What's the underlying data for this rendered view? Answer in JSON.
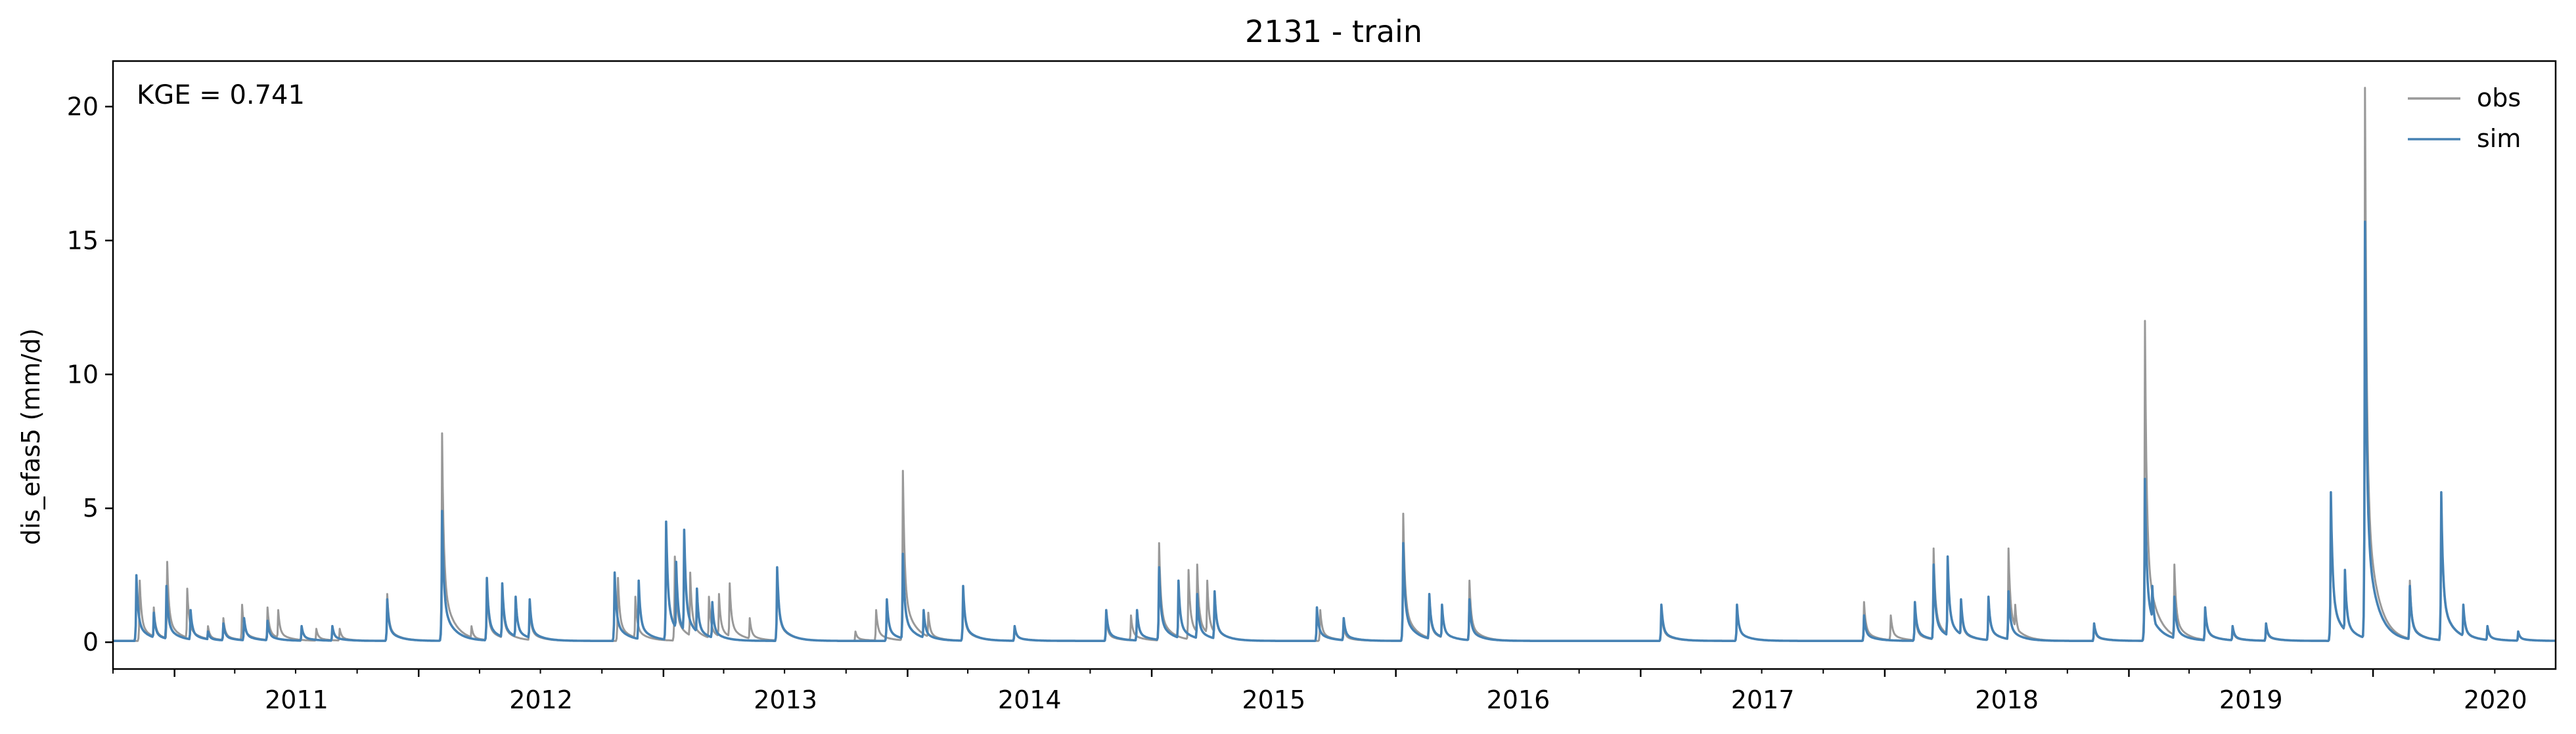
{
  "chart_data": {
    "type": "line",
    "title": "2131 - train",
    "xlabel": "",
    "ylabel": "dis_efas5 (mm/d)",
    "annotation": "KGE = 0.741",
    "x_range": [
      "2010-10-01",
      "2020-09-30"
    ],
    "ylim": [
      -1,
      21.7
    ],
    "yticks": [
      0,
      5,
      10,
      15,
      20
    ],
    "xtick_labels": [
      "2011",
      "2012",
      "2013",
      "2014",
      "2015",
      "2016",
      "2017",
      "2018",
      "2019",
      "2020"
    ],
    "grid": false,
    "legend_position": "top-right",
    "base_level": 0.05,
    "series": [
      {
        "name": "obs",
        "color": "#999999",
        "peaks": [
          [
            "2010-11-10",
            2.3
          ],
          [
            "2010-12-01",
            1.3
          ],
          [
            "2010-12-21",
            3.0
          ],
          [
            "2011-01-20",
            2.0
          ],
          [
            "2011-02-20",
            0.6
          ],
          [
            "2011-03-15",
            0.9
          ],
          [
            "2011-04-12",
            1.4
          ],
          [
            "2011-05-20",
            1.3
          ],
          [
            "2011-06-05",
            1.2
          ],
          [
            "2011-08-01",
            0.5
          ],
          [
            "2011-09-05",
            0.5
          ],
          [
            "2011-11-15",
            1.8
          ],
          [
            "2012-02-05",
            7.8
          ],
          [
            "2012-03-20",
            0.6
          ],
          [
            "2012-04-12",
            2.0
          ],
          [
            "2012-05-05",
            1.9
          ],
          [
            "2012-06-15",
            1.3
          ],
          [
            "2012-10-25",
            2.4
          ],
          [
            "2012-11-20",
            1.7
          ],
          [
            "2013-01-18",
            3.2
          ],
          [
            "2013-02-10",
            2.6
          ],
          [
            "2013-03-10",
            1.7
          ],
          [
            "2013-03-25",
            1.8
          ],
          [
            "2013-04-10",
            2.2
          ],
          [
            "2013-05-10",
            0.9
          ],
          [
            "2013-06-20",
            2.6
          ],
          [
            "2013-10-15",
            0.4
          ],
          [
            "2013-11-15",
            1.2
          ],
          [
            "2013-12-25",
            6.4
          ],
          [
            "2014-02-01",
            1.1
          ],
          [
            "2014-03-25",
            1.9
          ],
          [
            "2014-06-10",
            0.6
          ],
          [
            "2014-10-25",
            0.9
          ],
          [
            "2014-12-01",
            1.0
          ],
          [
            "2015-01-12",
            3.7
          ],
          [
            "2015-02-25",
            2.7
          ],
          [
            "2015-03-10",
            2.9
          ],
          [
            "2015-03-25",
            2.3
          ],
          [
            "2015-04-05",
            1.8
          ],
          [
            "2015-09-10",
            1.2
          ],
          [
            "2015-10-15",
            0.6
          ],
          [
            "2016-01-12",
            4.8
          ],
          [
            "2016-02-20",
            1.6
          ],
          [
            "2016-03-10",
            1.4
          ],
          [
            "2016-04-20",
            2.3
          ],
          [
            "2017-02-01",
            1.2
          ],
          [
            "2017-05-25",
            1.4
          ],
          [
            "2017-12-01",
            1.5
          ],
          [
            "2018-01-10",
            1.0
          ],
          [
            "2018-02-15",
            1.2
          ],
          [
            "2018-03-15",
            3.5
          ],
          [
            "2018-04-05",
            3.2
          ],
          [
            "2018-04-25",
            1.4
          ],
          [
            "2018-06-05",
            1.6
          ],
          [
            "2018-07-05",
            3.5
          ],
          [
            "2018-07-15",
            1.4
          ],
          [
            "2018-11-10",
            0.6
          ],
          [
            "2019-01-25",
            12.0
          ],
          [
            "2019-03-10",
            2.9
          ],
          [
            "2019-04-25",
            1.2
          ],
          [
            "2019-06-05",
            0.5
          ],
          [
            "2019-07-25",
            0.6
          ],
          [
            "2019-10-30",
            5.4
          ],
          [
            "2019-11-20",
            2.7
          ],
          [
            "2019-12-20",
            20.7
          ],
          [
            "2020-02-25",
            2.3
          ],
          [
            "2020-04-12",
            5.4
          ],
          [
            "2020-05-15",
            1.3
          ],
          [
            "2020-06-20",
            0.6
          ],
          [
            "2020-08-05",
            0.4
          ]
        ]
      },
      {
        "name": "sim",
        "color": "#4682b4",
        "peaks": [
          [
            "2010-11-05",
            2.5
          ],
          [
            "2010-12-01",
            1.1
          ],
          [
            "2010-12-20",
            2.1
          ],
          [
            "2011-01-25",
            1.2
          ],
          [
            "2011-02-20",
            0.4
          ],
          [
            "2011-03-15",
            0.7
          ],
          [
            "2011-04-15",
            0.9
          ],
          [
            "2011-05-20",
            0.8
          ],
          [
            "2011-07-10",
            0.6
          ],
          [
            "2011-08-25",
            0.6
          ],
          [
            "2011-11-15",
            1.6
          ],
          [
            "2012-02-05",
            4.9
          ],
          [
            "2012-04-12",
            2.4
          ],
          [
            "2012-05-05",
            2.2
          ],
          [
            "2012-05-25",
            1.7
          ],
          [
            "2012-06-15",
            1.6
          ],
          [
            "2012-10-20",
            2.6
          ],
          [
            "2012-11-25",
            2.3
          ],
          [
            "2013-01-05",
            4.5
          ],
          [
            "2013-01-20",
            3.0
          ],
          [
            "2013-02-01",
            4.2
          ],
          [
            "2013-02-20",
            2.0
          ],
          [
            "2013-03-15",
            1.5
          ],
          [
            "2013-06-20",
            2.8
          ],
          [
            "2013-12-01",
            1.6
          ],
          [
            "2013-12-25",
            3.3
          ],
          [
            "2014-01-25",
            1.2
          ],
          [
            "2014-03-25",
            2.1
          ],
          [
            "2014-06-10",
            0.6
          ],
          [
            "2014-10-25",
            1.2
          ],
          [
            "2014-12-10",
            1.2
          ],
          [
            "2015-01-12",
            2.8
          ],
          [
            "2015-02-10",
            2.3
          ],
          [
            "2015-03-10",
            1.8
          ],
          [
            "2015-04-05",
            1.9
          ],
          [
            "2015-09-05",
            1.3
          ],
          [
            "2015-10-15",
            0.9
          ],
          [
            "2016-01-12",
            3.7
          ],
          [
            "2016-02-20",
            1.8
          ],
          [
            "2016-03-10",
            1.4
          ],
          [
            "2016-04-20",
            1.6
          ],
          [
            "2017-02-01",
            1.4
          ],
          [
            "2017-05-25",
            1.4
          ],
          [
            "2017-12-01",
            1.0
          ],
          [
            "2018-02-15",
            1.5
          ],
          [
            "2018-03-15",
            2.9
          ],
          [
            "2018-04-05",
            3.2
          ],
          [
            "2018-04-25",
            1.6
          ],
          [
            "2018-06-05",
            1.7
          ],
          [
            "2018-07-05",
            1.9
          ],
          [
            "2018-11-10",
            0.7
          ],
          [
            "2019-01-25",
            6.1
          ],
          [
            "2019-02-05",
            2.1
          ],
          [
            "2019-03-10",
            1.7
          ],
          [
            "2019-04-25",
            1.3
          ],
          [
            "2019-06-05",
            0.6
          ],
          [
            "2019-07-25",
            0.7
          ],
          [
            "2019-10-30",
            5.6
          ],
          [
            "2019-11-20",
            2.7
          ],
          [
            "2019-12-20",
            15.7
          ],
          [
            "2020-02-25",
            2.1
          ],
          [
            "2020-04-12",
            5.6
          ],
          [
            "2020-05-15",
            1.4
          ],
          [
            "2020-06-20",
            0.6
          ],
          [
            "2020-08-05",
            0.4
          ]
        ]
      }
    ]
  }
}
